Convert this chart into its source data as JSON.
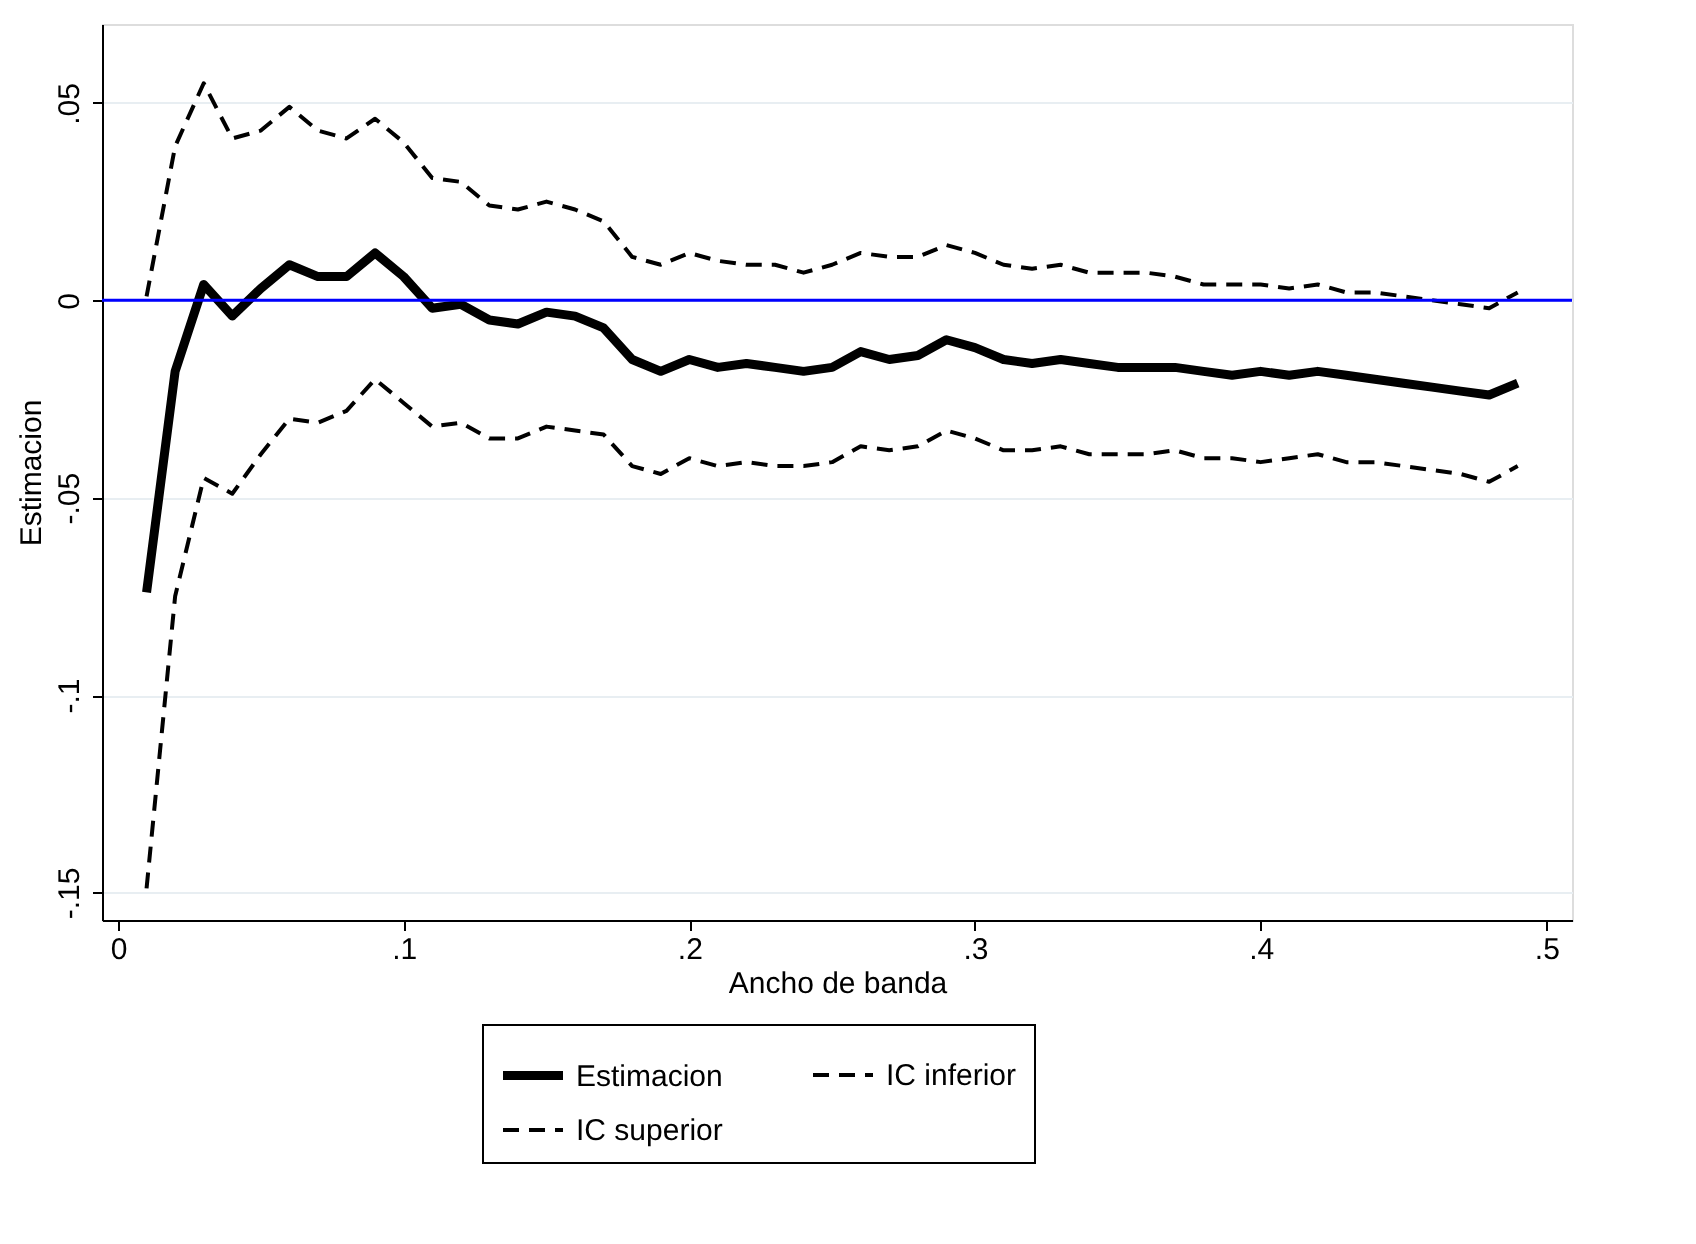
{
  "chart_data": {
    "type": "line",
    "xlabel": "Ancho de banda",
    "ylabel": "Estimacion",
    "x": [
      0.01,
      0.02,
      0.03,
      0.04,
      0.05,
      0.06,
      0.07,
      0.08,
      0.09,
      0.1,
      0.11,
      0.12,
      0.13,
      0.14,
      0.15,
      0.16,
      0.17,
      0.18,
      0.19,
      0.2,
      0.21,
      0.22,
      0.23,
      0.24,
      0.25,
      0.26,
      0.27,
      0.28,
      0.29,
      0.3,
      0.31,
      0.32,
      0.33,
      0.34,
      0.35,
      0.36,
      0.37,
      0.38,
      0.39,
      0.4,
      0.41,
      0.42,
      0.43,
      0.44,
      0.45,
      0.46,
      0.47,
      0.48,
      0.49
    ],
    "series": [
      {
        "name": "Estimacion",
        "color": "#000000",
        "line_style": "solid",
        "values": [
          -0.074,
          -0.018,
          0.004,
          -0.004,
          0.003,
          0.009,
          0.006,
          0.006,
          0.012,
          0.006,
          -0.002,
          -0.001,
          -0.005,
          -0.006,
          -0.003,
          -0.004,
          -0.007,
          -0.015,
          -0.018,
          -0.015,
          -0.017,
          -0.016,
          -0.017,
          -0.018,
          -0.017,
          -0.013,
          -0.015,
          -0.014,
          -0.01,
          -0.012,
          -0.015,
          -0.016,
          -0.015,
          -0.016,
          -0.017,
          -0.017,
          -0.017,
          -0.018,
          -0.019,
          -0.018,
          -0.019,
          -0.018,
          -0.019,
          -0.02,
          -0.021,
          -0.022,
          -0.023,
          -0.024,
          -0.021
        ]
      },
      {
        "name": "IC inferior",
        "color": "#000000",
        "line_style": "dashed",
        "values": [
          -0.149,
          -0.075,
          -0.045,
          -0.049,
          -0.039,
          -0.03,
          -0.031,
          -0.028,
          -0.02,
          -0.026,
          -0.032,
          -0.031,
          -0.035,
          -0.035,
          -0.032,
          -0.033,
          -0.034,
          -0.042,
          -0.044,
          -0.04,
          -0.042,
          -0.041,
          -0.042,
          -0.042,
          -0.041,
          -0.037,
          -0.038,
          -0.037,
          -0.033,
          -0.035,
          -0.038,
          -0.038,
          -0.037,
          -0.039,
          -0.039,
          -0.039,
          -0.038,
          -0.04,
          -0.04,
          -0.041,
          -0.04,
          -0.039,
          -0.041,
          -0.041,
          -0.042,
          -0.043,
          -0.044,
          -0.046,
          -0.042
        ]
      },
      {
        "name": "IC superior",
        "color": "#000000",
        "line_style": "dashed",
        "values": [
          0.001,
          0.039,
          0.055,
          0.041,
          0.043,
          0.049,
          0.043,
          0.041,
          0.046,
          0.04,
          0.031,
          0.03,
          0.024,
          0.023,
          0.025,
          0.023,
          0.02,
          0.011,
          0.009,
          0.012,
          0.01,
          0.009,
          0.009,
          0.007,
          0.009,
          0.012,
          0.011,
          0.011,
          0.014,
          0.012,
          0.009,
          0.008,
          0.009,
          0.007,
          0.007,
          0.007,
          0.006,
          0.004,
          0.004,
          0.004,
          0.003,
          0.004,
          0.002,
          0.002,
          0.001,
          0.0,
          -0.001,
          -0.002,
          0.002
        ]
      }
    ],
    "xlim": [
      -0.0056,
      0.509
    ],
    "ylim": [
      -0.157,
      0.07
    ],
    "xticks": [
      {
        "value": 0,
        "label": "0"
      },
      {
        "value": 0.1,
        "label": ".1"
      },
      {
        "value": 0.2,
        "label": ".2"
      },
      {
        "value": 0.3,
        "label": ".3"
      },
      {
        "value": 0.4,
        "label": ".4"
      },
      {
        "value": 0.5,
        "label": ".5"
      }
    ],
    "yticks": [
      {
        "value": -0.15,
        "label": "-.15"
      },
      {
        "value": -0.1,
        "label": "-.1"
      },
      {
        "value": -0.05,
        "label": "-.05"
      },
      {
        "value": 0,
        "label": "0"
      },
      {
        "value": 0.05,
        "label": ".05"
      }
    ],
    "ref_lines": [
      {
        "axis": "y",
        "value": 0,
        "color": "#0000ff"
      }
    ],
    "grid": "y",
    "legend": "bottom"
  }
}
